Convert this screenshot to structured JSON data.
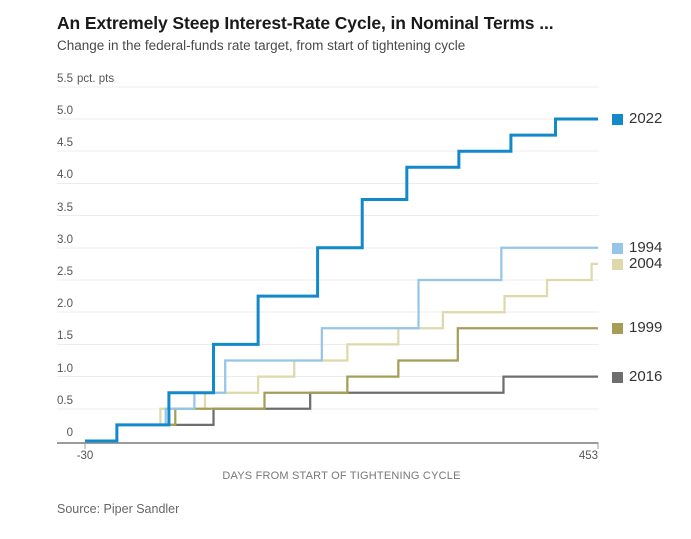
{
  "header": {
    "title": "An Extremely Steep Interest-Rate Cycle, in Nominal Terms ...",
    "subtitle": "Change in the federal-funds rate target, from start of tightening cycle"
  },
  "chart_data": {
    "type": "line",
    "step": true,
    "title": "An Extremely Steep Interest-Rate Cycle, in Nominal Terms ...",
    "subtitle": "Change in the federal-funds rate target, from start of tightening cycle",
    "xlabel": "DAYS FROM START OF TIGHTENING CYCLE",
    "ylabel_unit": "pct. pts",
    "xlim": [
      -30,
      453
    ],
    "ylim": [
      0,
      5.5
    ],
    "x_ticks": [
      "-30",
      "453"
    ],
    "y_ticks": [
      "0",
      "0.5",
      "1.0",
      "1.5",
      "2.0",
      "2.5",
      "3.0",
      "3.5",
      "4.0",
      "4.5",
      "5.0",
      "5.5"
    ],
    "grid": "horizontal",
    "legend_position": "right-at-line-end",
    "draw_order": [
      "2004",
      "2016",
      "1999",
      "1994",
      "2022"
    ],
    "series": [
      {
        "name": "2022",
        "color": "#1289ca",
        "width": 3,
        "points": [
          [
            -30,
            0
          ],
          [
            0,
            0.25
          ],
          [
            49,
            0.75
          ],
          [
            91,
            1.5
          ],
          [
            133,
            2.25
          ],
          [
            189,
            3.0
          ],
          [
            231,
            3.75
          ],
          [
            273,
            4.25
          ],
          [
            322,
            4.5
          ],
          [
            371,
            4.75
          ],
          [
            413,
            5.0
          ],
          [
            453,
            5.0
          ]
        ]
      },
      {
        "name": "1994",
        "color": "#95c6e8",
        "width": 2.25,
        "points": [
          [
            -30,
            0
          ],
          [
            0,
            0.25
          ],
          [
            46,
            0.5
          ],
          [
            73,
            0.75
          ],
          [
            102,
            1.25
          ],
          [
            193,
            1.75
          ],
          [
            284,
            2.5
          ],
          [
            362,
            3.0
          ],
          [
            453,
            3.0
          ]
        ]
      },
      {
        "name": "2004",
        "color": "#ded8ab",
        "width": 2.25,
        "points": [
          [
            -30,
            0
          ],
          [
            0,
            0.25
          ],
          [
            41,
            0.5
          ],
          [
            83,
            0.75
          ],
          [
            133,
            1.0
          ],
          [
            167,
            1.25
          ],
          [
            217,
            1.5
          ],
          [
            265,
            1.75
          ],
          [
            307,
            2.0
          ],
          [
            365,
            2.25
          ],
          [
            405,
            2.5
          ],
          [
            447,
            2.75
          ],
          [
            453,
            2.75
          ]
        ]
      },
      {
        "name": "1999",
        "color": "#a59e58",
        "width": 2.25,
        "points": [
          [
            -30,
            0
          ],
          [
            0,
            0.25
          ],
          [
            55,
            0.5
          ],
          [
            139,
            0.75
          ],
          [
            217,
            1.0
          ],
          [
            265,
            1.25
          ],
          [
            321,
            1.75
          ],
          [
            453,
            1.75
          ]
        ]
      },
      {
        "name": "2016",
        "color": "#6e6e6e",
        "width": 2.25,
        "points": [
          [
            -30,
            0
          ],
          [
            0,
            0.25
          ],
          [
            91,
            0.5
          ],
          [
            182,
            0.75
          ],
          [
            364,
            1.0
          ],
          [
            453,
            1.0
          ]
        ]
      }
    ],
    "colors": {
      "background": "#ffffff",
      "grid": "#ececec",
      "axis": "#9b9b9b",
      "tick_label": "#555555",
      "axis_title": "#777777",
      "legend_text": "#333333",
      "title": "#1a1a1a",
      "subtitle": "#4a4a4a",
      "source": "#666666"
    }
  },
  "footer": {
    "source": "Source: Piper Sandler"
  }
}
